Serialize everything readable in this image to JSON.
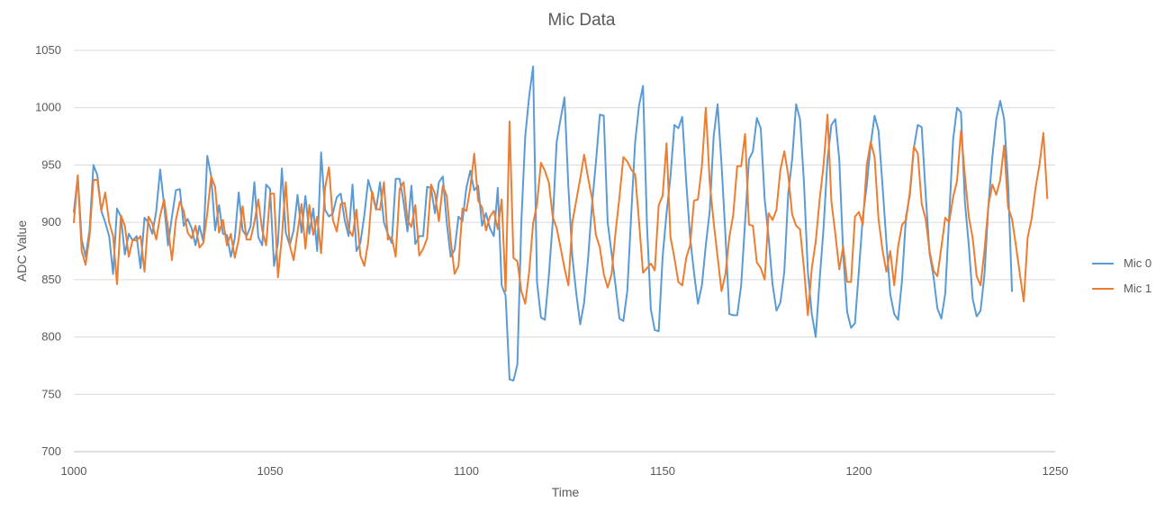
{
  "chart_data": {
    "type": "line",
    "title": "Mic Data",
    "xlabel": "Time",
    "ylabel": "ADC Value",
    "xlim": [
      1000,
      1250
    ],
    "ylim": [
      700,
      1050
    ],
    "xticks": [
      1000,
      1050,
      1100,
      1150,
      1200,
      1250
    ],
    "yticks": [
      700,
      750,
      800,
      850,
      900,
      950,
      1000,
      1050
    ],
    "grid": "horizontal",
    "legend": "right",
    "x": {
      "start": 1000,
      "step": 1
    },
    "series": [
      {
        "name": "Mic 0",
        "color": "#5B9BD5",
        "values": [
          909,
          940,
          885,
          870,
          893,
          950,
          941,
          910,
          900,
          888,
          855,
          912,
          905,
          872,
          890,
          884,
          888,
          860,
          904,
          900,
          890,
          910,
          946,
          915,
          880,
          905,
          928,
          929,
          897,
          903,
          895,
          880,
          897,
          883,
          958,
          940,
          893,
          915,
          890,
          889,
          870,
          886,
          926,
          893,
          888,
          896,
          935,
          887,
          880,
          933,
          929,
          862,
          882,
          947,
          891,
          880,
          893,
          924,
          891,
          923,
          890,
          912,
          875,
          961,
          911,
          905,
          908,
          922,
          925,
          902,
          888,
          933,
          875,
          882,
          906,
          937,
          925,
          911,
          935,
          900,
          890,
          882,
          938,
          938,
          918,
          892,
          932,
          881,
          888,
          888,
          931,
          930,
          908,
          935,
          940,
          900,
          870,
          876,
          905,
          901,
          930,
          945,
          928,
          932,
          897,
          908,
          895,
          888,
          930,
          845,
          836,
          763,
          762,
          776,
          900,
          975,
          1010,
          1036,
          848,
          817,
          815,
          853,
          900,
          970,
          990,
          1009,
          930,
          870,
          838,
          811,
          830,
          868,
          915,
          952,
          994,
          993,
          900,
          873,
          845,
          816,
          814,
          840,
          907,
          970,
          1002,
          1019,
          899,
          824,
          806,
          805,
          870,
          908,
          940,
          985,
          982,
          992,
          936,
          887,
          856,
          829,
          845,
          880,
          910,
          975,
          1003,
          951,
          889,
          820,
          819,
          819,
          845,
          900,
          955,
          962,
          991,
          982,
          920,
          887,
          846,
          823,
          830,
          857,
          925,
          955,
          1003,
          990,
          935,
          857,
          820,
          800,
          850,
          895,
          955,
          985,
          990,
          955,
          873,
          822,
          808,
          812,
          858,
          905,
          932,
          968,
          993,
          980,
          933,
          883,
          837,
          820,
          815,
          850,
          905,
          924,
          965,
          985,
          983,
          925,
          873,
          853,
          825,
          816,
          838,
          905,
          972,
          1000,
          996,
          918,
          880,
          833,
          818,
          823,
          855,
          915,
          957,
          990,
          1006,
          990,
          935,
          840
        ]
      },
      {
        "name": "Mic 1",
        "color": "#ED7D31",
        "values": [
          900,
          941,
          875,
          863,
          888,
          937,
          937,
          910,
          926,
          900,
          888,
          846,
          906,
          897,
          870,
          885,
          884,
          888,
          857,
          905,
          899,
          885,
          906,
          920,
          895,
          867,
          902,
          918,
          910,
          891,
          886,
          897,
          878,
          882,
          908,
          940,
          931,
          891,
          902,
          880,
          890,
          869,
          885,
          914,
          885,
          885,
          900,
          920,
          893,
          880,
          925,
          925,
          852,
          887,
          935,
          880,
          867,
          892,
          916,
          877,
          915,
          889,
          905,
          873,
          930,
          948,
          902,
          892,
          916,
          917,
          894,
          888,
          911,
          871,
          862,
          883,
          927,
          912,
          911,
          935,
          885,
          887,
          870,
          929,
          935,
          902,
          896,
          915,
          871,
          877,
          886,
          933,
          925,
          901,
          932,
          923,
          885,
          855,
          862,
          912,
          910,
          930,
          960,
          919,
          913,
          893,
          905,
          910,
          894,
          920,
          840,
          988,
          869,
          866,
          840,
          829,
          857,
          899,
          916,
          952,
          945,
          935,
          905,
          895,
          878,
          860,
          845,
          900,
          919,
          938,
          959,
          939,
          921,
          889,
          878,
          855,
          843,
          855,
          891,
          922,
          957,
          953,
          946,
          942,
          900,
          856,
          860,
          864,
          858,
          915,
          923,
          969,
          887,
          869,
          848,
          845,
          869,
          880,
          919,
          920,
          949,
          1000,
          935,
          900,
          870,
          840,
          855,
          887,
          907,
          949,
          949,
          977,
          898,
          897,
          865,
          860,
          850,
          908,
          902,
          911,
          946,
          962,
          941,
          907,
          897,
          894,
          860,
          819,
          860,
          883,
          920,
          950,
          994,
          918,
          890,
          859,
          879,
          848,
          848,
          905,
          909,
          898,
          950,
          970,
          957,
          903,
          876,
          857,
          875,
          845,
          879,
          898,
          902,
          927,
          966,
          960,
          916,
          903,
          875,
          858,
          853,
          878,
          904,
          900,
          922,
          936,
          980,
          941,
          905,
          886,
          853,
          845,
          876,
          915,
          933,
          924,
          937,
          967,
          913,
          903,
          880,
          855,
          831,
          887,
          903,
          930,
          950,
          978,
          921
        ]
      }
    ]
  }
}
